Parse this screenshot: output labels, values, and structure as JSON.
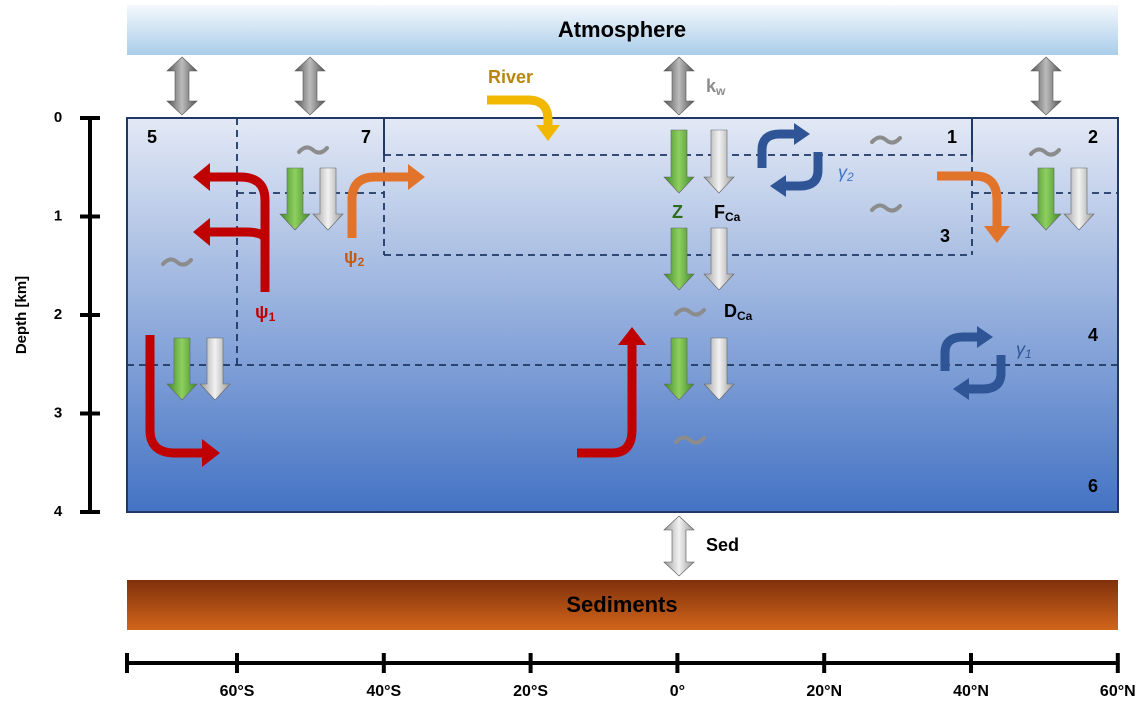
{
  "atmosphere": "Atmosphere",
  "sediments": "Sediments",
  "river": "River",
  "kw": {
    "base": "k",
    "sub": "w"
  },
  "boxes": [
    "1",
    "2",
    "3",
    "4",
    "5",
    "6",
    "7"
  ],
  "z": "Z",
  "f_ca": {
    "base": "F",
    "sub": "Ca"
  },
  "d_ca": {
    "base": "D",
    "sub": "Ca"
  },
  "psi1": {
    "base": "ψ",
    "sub": "1"
  },
  "psi2": {
    "base": "ψ",
    "sub": "2"
  },
  "gamma1": {
    "base": "γ",
    "sub": "1"
  },
  "gamma2": {
    "base": "γ",
    "sub": "2"
  },
  "sed": "Sed",
  "depth_axis": {
    "label": "Depth [km]",
    "ticks": [
      "0",
      "1",
      "2",
      "3",
      "4"
    ]
  },
  "latitude_axis": {
    "ticks": [
      "60°S",
      "40°S",
      "20°S",
      "0°",
      "20°N",
      "40°N",
      "60°N"
    ]
  }
}
